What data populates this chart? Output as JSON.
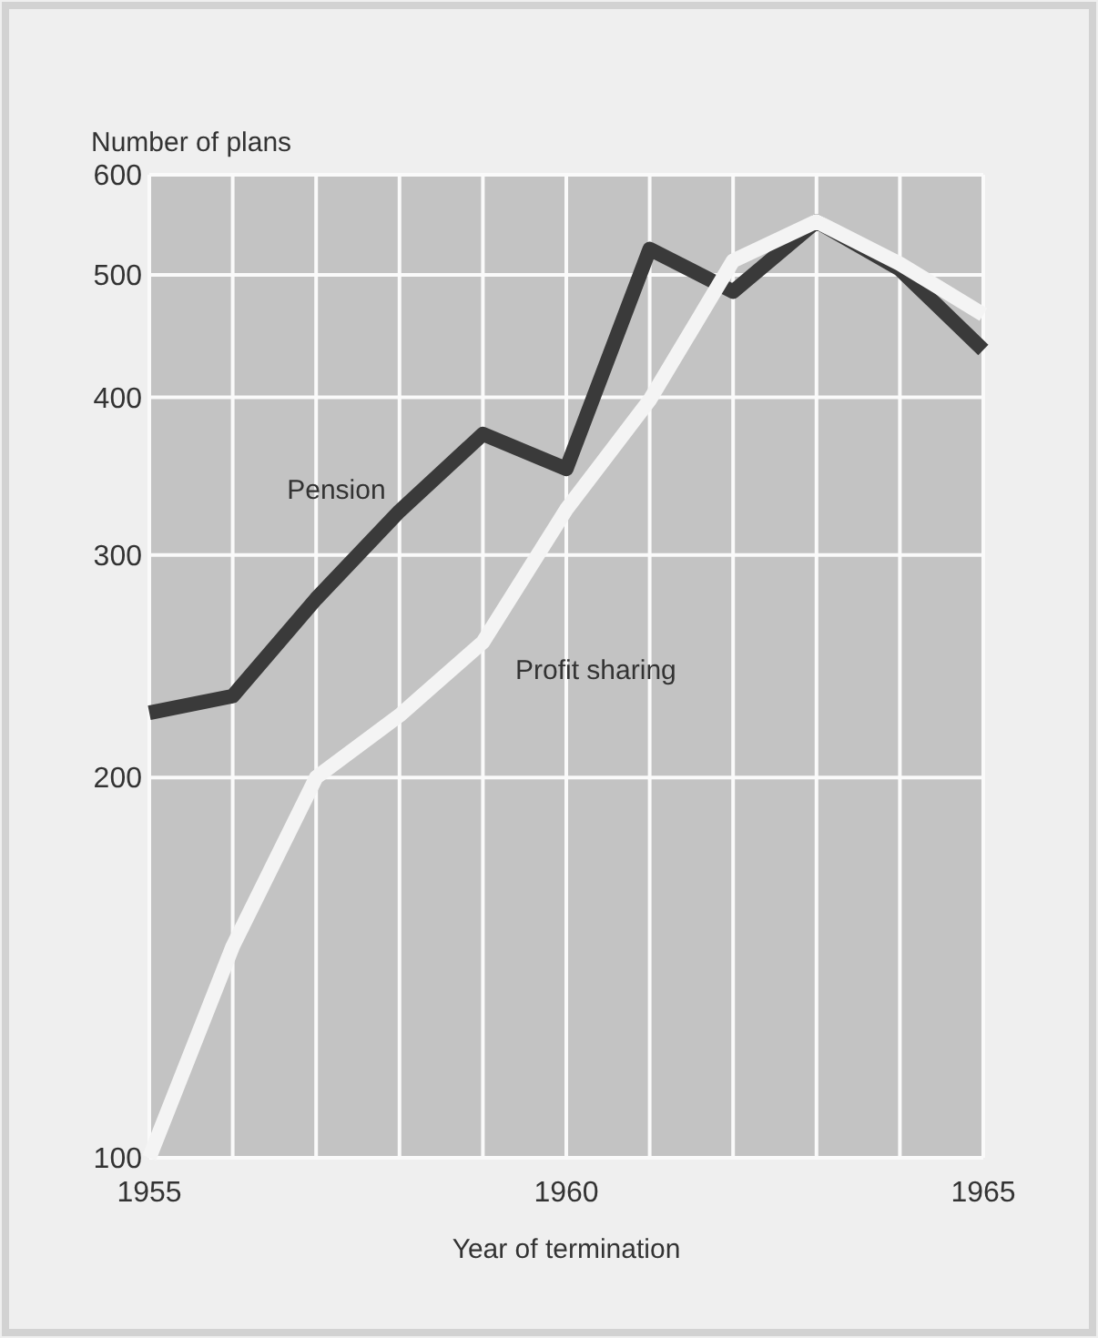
{
  "chart_data": {
    "type": "line",
    "xlabel": "Year of termination",
    "ylabel": "Number of plans",
    "x": [
      1955,
      1956,
      1957,
      1958,
      1959,
      1960,
      1961,
      1962,
      1963,
      1964,
      1965
    ],
    "series": [
      {
        "name": "Pension",
        "color": "#3a3a3a",
        "values": [
          225,
          232,
          277,
          325,
          374,
          351,
          524,
          485,
          551,
          505,
          436
        ]
      },
      {
        "name": "Profit sharing",
        "color": "#f4f4f4",
        "values": [
          100,
          147,
          200,
          224,
          256,
          326,
          398,
          513,
          551,
          510,
          465
        ]
      }
    ],
    "xlim": [
      1955,
      1965
    ],
    "xticks": [
      1955,
      1960,
      1965
    ],
    "ylim": [
      100,
      600
    ],
    "yticks": [
      100,
      200,
      300,
      400,
      500,
      600
    ],
    "log": "y",
    "grid": true,
    "legend": false,
    "line_style": "solid",
    "marker": "none"
  }
}
